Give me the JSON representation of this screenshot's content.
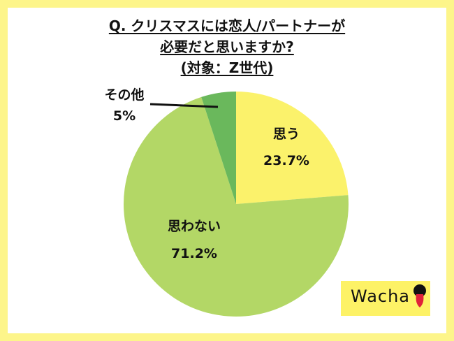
{
  "chart_data": {
    "type": "pie",
    "title_lines": [
      "Q. クリスマスには恋人/パートナーが",
      "必要だと思いますか?",
      "(対象：Z世代)"
    ],
    "slices": [
      {
        "label": "思う",
        "value": 23.7,
        "value_label": "23.7%",
        "color": "#fbf26b"
      },
      {
        "label": "思わない",
        "value": 71.2,
        "value_label": "71.2%",
        "color": "#b3d766"
      },
      {
        "label": "その他",
        "value": 5.0,
        "value_label": "5%",
        "color": "#6ab85c"
      }
    ],
    "start": "12 o'clock",
    "direction": "clockwise"
  },
  "frame_color": "#fdf58a",
  "logo": {
    "text": "Wacha",
    "background": "#fdf266",
    "mark_color": "#e0203a"
  }
}
